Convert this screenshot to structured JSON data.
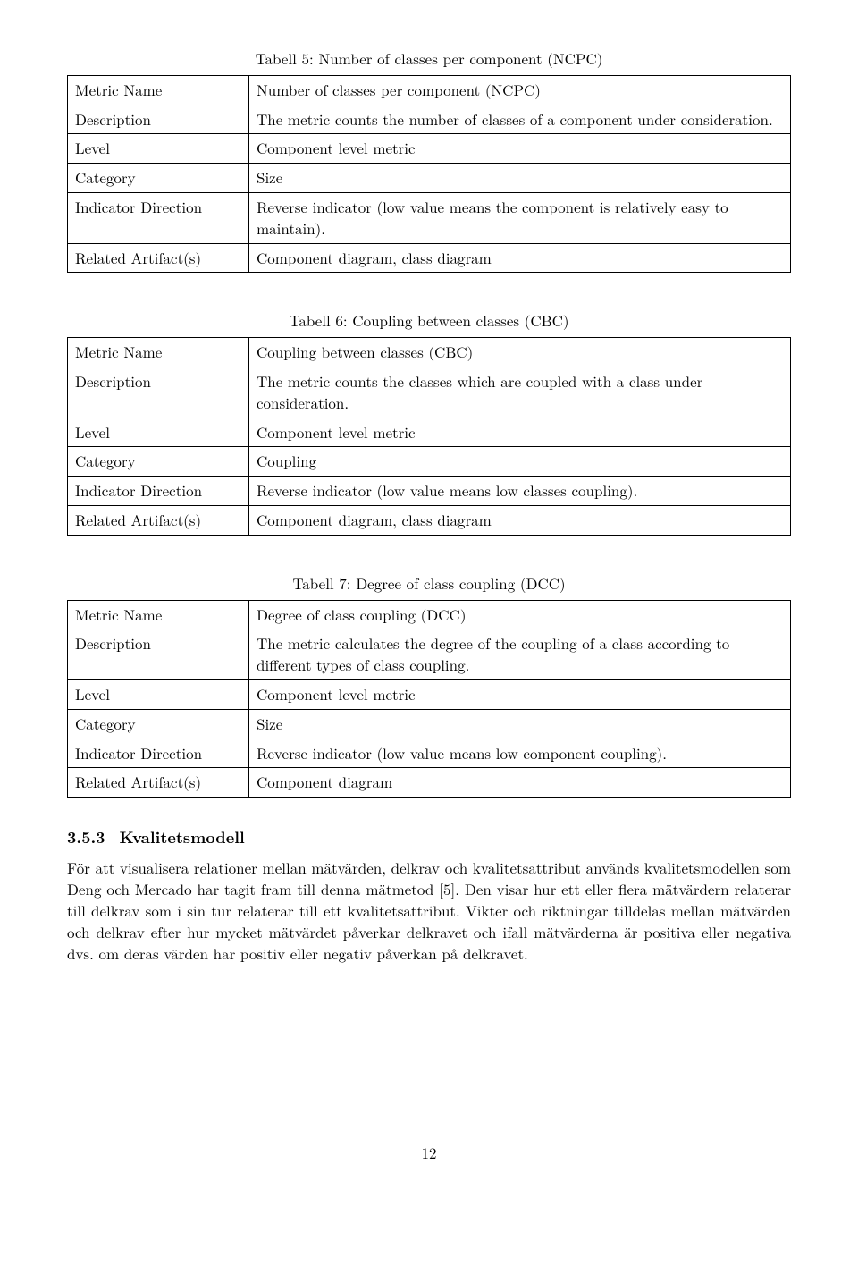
{
  "table5": {
    "caption": "Tabell 5: Number of classes per component (NCPC)",
    "rows": {
      "metric_name_label": "Metric Name",
      "metric_name_value": "Number of classes per component (NCPC)",
      "description_label": "Description",
      "description_value": "The metric counts the number of classes of a component under consideration.",
      "level_label": "Level",
      "level_value": "Component level metric",
      "category_label": "Category",
      "category_value": "Size",
      "indicator_label": "Indicator Direction",
      "indicator_value": "Reverse indicator (low value means the component is relatively easy to maintain).",
      "artifacts_label": "Related Artifact(s)",
      "artifacts_value": "Component diagram, class diagram"
    }
  },
  "table6": {
    "caption": "Tabell 6: Coupling between classes (CBC)",
    "rows": {
      "metric_name_label": "Metric Name",
      "metric_name_value": "Coupling between classes (CBC)",
      "description_label": "Description",
      "description_value": "The metric counts the classes which are coupled with a class under consideration.",
      "level_label": "Level",
      "level_value": "Component level metric",
      "category_label": "Category",
      "category_value": "Coupling",
      "indicator_label": "Indicator Direction",
      "indicator_value": "Reverse indicator (low value means low classes coupling).",
      "artifacts_label": "Related Artifact(s)",
      "artifacts_value": "Component diagram, class diagram"
    }
  },
  "table7": {
    "caption": "Tabell 7: Degree of class coupling (DCC)",
    "rows": {
      "metric_name_label": "Metric Name",
      "metric_name_value": "Degree of class coupling (DCC)",
      "description_label": "Description",
      "description_value": "The metric calculates the degree of the coupling of a class according to different types of class coupling.",
      "level_label": "Level",
      "level_value": "Component level metric",
      "category_label": "Category",
      "category_value": "Size",
      "indicator_label": "Indicator Direction",
      "indicator_value": "Reverse indicator (low value means low component coupling).",
      "artifacts_label": "Related Artifact(s)",
      "artifacts_value": "Component diagram"
    }
  },
  "section": {
    "number": "3.5.3",
    "title": "Kvalitetsmodell",
    "body": "För att visualisera relationer mellan mätvärden, delkrav och kvalitetsattribut används kvalitetsmodellen som Deng och Mercado har tagit fram till denna mätmetod [5]. Den visar hur ett eller flera mätvärdern relaterar till delkrav som i sin tur relaterar till ett kvalitetsattribut. Vikter och riktningar tilldelas mellan mätvärden och delkrav efter hur mycket mätvärdet påverkar delkravet och ifall mätvärderna är positiva eller negativa dvs. om deras värden har positiv eller negativ påverkan på delkravet."
  },
  "page_number": "12"
}
